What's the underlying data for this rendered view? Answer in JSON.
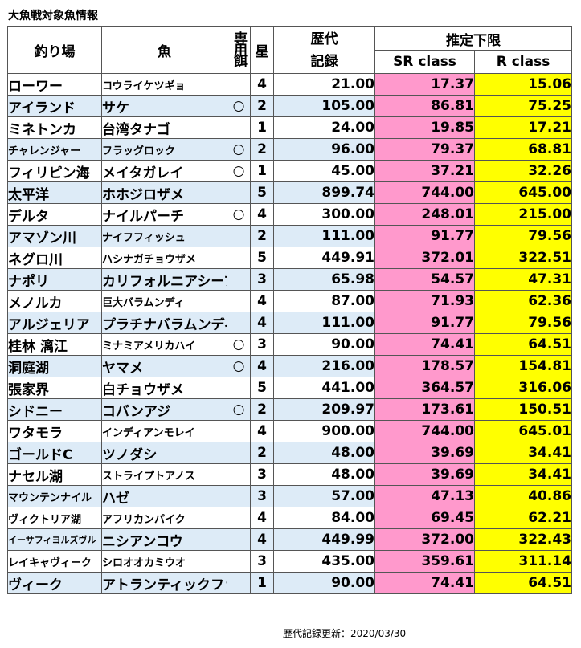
{
  "title": "大魚戦対象魚情報",
  "headers": {
    "place": "釣り場",
    "fish": "魚",
    "bait": "専用餌",
    "star": "星",
    "record": "歴代記録",
    "estimate": "推定下限",
    "sr": "SR class",
    "r": "R class"
  },
  "rows": [
    {
      "place": "ローワー",
      "fish": "コウライケツギョ",
      "bait": "",
      "star": "4",
      "record": "21.00",
      "sr": "17.37",
      "r": "15.06"
    },
    {
      "place": "アイランド",
      "fish": "サケ",
      "bait": "○",
      "star": "2",
      "record": "105.00",
      "sr": "86.81",
      "r": "75.25"
    },
    {
      "place": "ミネトンカ",
      "fish": "台湾タナゴ",
      "bait": "",
      "star": "1",
      "record": "24.00",
      "sr": "19.85",
      "r": "17.21"
    },
    {
      "place": "チャレンジャー",
      "fish": "フラッグロック",
      "bait": "○",
      "star": "2",
      "record": "96.00",
      "sr": "79.37",
      "r": "68.81"
    },
    {
      "place": "フィリピン海",
      "fish": "メイタガレイ",
      "bait": "○",
      "star": "1",
      "record": "45.00",
      "sr": "37.21",
      "r": "32.26"
    },
    {
      "place": "太平洋",
      "fish": "ホホジロザメ",
      "bait": "",
      "star": "5",
      "record": "899.74",
      "sr": "744.00",
      "r": "645.00"
    },
    {
      "place": "デルタ",
      "fish": "ナイルパーチ",
      "bait": "○",
      "star": "4",
      "record": "300.00",
      "sr": "248.01",
      "r": "215.00"
    },
    {
      "place": "アマゾン川",
      "fish": "ナイフフィッシュ",
      "bait": "",
      "star": "2",
      "record": "111.00",
      "sr": "91.77",
      "r": "79.56"
    },
    {
      "place": "ネグロ川",
      "fish": "ハシナガチョウザメ",
      "bait": "",
      "star": "5",
      "record": "449.91",
      "sr": "372.01",
      "r": "322.51"
    },
    {
      "place": "ナポリ",
      "fish": "カリフォルニアシープ",
      "bait": "",
      "star": "3",
      "record": "65.98",
      "sr": "54.57",
      "r": "47.31"
    },
    {
      "place": "メノルカ",
      "fish": "巨大バラムンディ",
      "bait": "",
      "star": "4",
      "record": "87.00",
      "sr": "71.93",
      "r": "62.36"
    },
    {
      "place": "アルジェリア",
      "fish": "プラチナバラムンディ",
      "bait": "",
      "star": "4",
      "record": "111.00",
      "sr": "91.77",
      "r": "79.56"
    },
    {
      "place": "桂林 漓江",
      "fish": "ミナミアメリカハイ",
      "bait": "○",
      "star": "3",
      "record": "90.00",
      "sr": "74.41",
      "r": "64.51"
    },
    {
      "place": "洞庭湖",
      "fish": "ヤマメ",
      "bait": "○",
      "star": "4",
      "record": "216.00",
      "sr": "178.57",
      "r": "154.81"
    },
    {
      "place": "張家界",
      "fish": "白チョウザメ",
      "bait": "",
      "star": "5",
      "record": "441.00",
      "sr": "364.57",
      "r": "316.06"
    },
    {
      "place": "シドニー",
      "fish": "コバンアジ",
      "bait": "○",
      "star": "2",
      "record": "209.97",
      "sr": "173.61",
      "r": "150.51"
    },
    {
      "place": "ワタモラ",
      "fish": "インディアンモレイ",
      "bait": "",
      "star": "4",
      "record": "900.00",
      "sr": "744.00",
      "r": "645.01"
    },
    {
      "place": "ゴールドC",
      "fish": "ツノダシ",
      "bait": "",
      "star": "2",
      "record": "48.00",
      "sr": "39.69",
      "r": "34.41"
    },
    {
      "place": "ナセル湖",
      "fish": "ストライプトアノス",
      "bait": "",
      "star": "3",
      "record": "48.00",
      "sr": "39.69",
      "r": "34.41"
    },
    {
      "place": "マウンテンナイル",
      "fish": "ハゼ",
      "bait": "",
      "star": "3",
      "record": "57.00",
      "sr": "47.13",
      "r": "40.86"
    },
    {
      "place": "ヴィクトリア湖",
      "fish": "アフリカンパイク",
      "bait": "",
      "star": "4",
      "record": "84.00",
      "sr": "69.45",
      "r": "62.21"
    },
    {
      "place": "イーサフィヨルズヴル",
      "fish": "ニシアンコウ",
      "bait": "",
      "star": "4",
      "record": "449.99",
      "sr": "372.00",
      "r": "322.43"
    },
    {
      "place": "レイキャヴィーク",
      "fish": "シロオオカミウオ",
      "bait": "",
      "star": "3",
      "record": "435.00",
      "sr": "359.61",
      "r": "311.14"
    },
    {
      "place": "ヴィーク",
      "fish": "アトランティックファン",
      "bait": "",
      "star": "1",
      "record": "90.00",
      "sr": "74.41",
      "r": "64.51"
    }
  ],
  "footer": "歴代記録更新：2020/03/30",
  "colors": {
    "sr": "#ff99cc",
    "r": "#ffff00",
    "shade": "#ddebf7"
  }
}
